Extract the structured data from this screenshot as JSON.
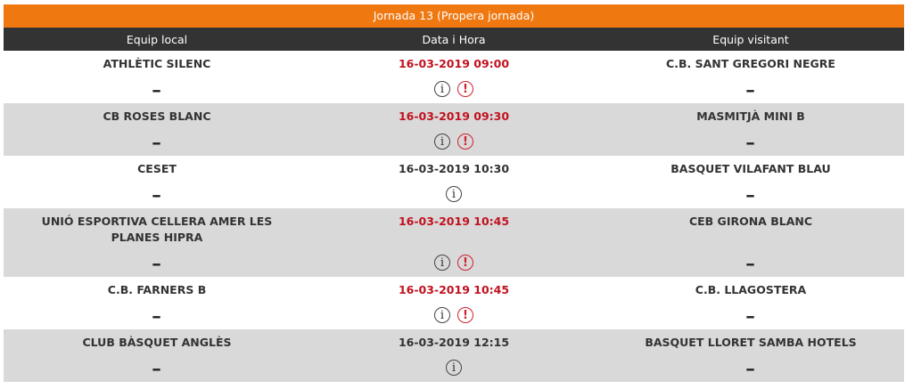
{
  "title": "Jornada 13 (Propera jornada)",
  "headers": {
    "local": "Equip local",
    "date": "Data i Hora",
    "visitor": "Equip visitant"
  },
  "colors": {
    "title_bg": "#ef7811",
    "header_bg": "#333333",
    "date_red": "#c1121f",
    "alt_row": "#d9d9d9"
  },
  "icons": {
    "info": "info-circle-icon",
    "warning": "exclamation-circle-icon"
  },
  "matches": [
    {
      "local": "ATHLÈTIC SILENC",
      "date": "16-03-2019 09:00",
      "visitor": "C.B. SANT GREGORI NEGRE",
      "local_score": "-",
      "visitor_score": "-",
      "date_red": true,
      "warning": true
    },
    {
      "local": "CB ROSES BLANC",
      "date": "16-03-2019 09:30",
      "visitor": "MASMITJÀ MINI B",
      "local_score": "-",
      "visitor_score": "-",
      "date_red": true,
      "warning": true
    },
    {
      "local": "CESET",
      "date": "16-03-2019 10:30",
      "visitor": "BASQUET VILAFANT BLAU",
      "local_score": "-",
      "visitor_score": "-",
      "date_red": false,
      "warning": false
    },
    {
      "local": "UNIÓ ESPORTIVA CELLERA AMER LES PLANES HIPRA",
      "date": "16-03-2019 10:45",
      "visitor": "CEB GIRONA BLANC",
      "local_score": "-",
      "visitor_score": "-",
      "date_red": true,
      "warning": true
    },
    {
      "local": "C.B. FARNERS B",
      "date": "16-03-2019 10:45",
      "visitor": "C.B. LLAGOSTERA",
      "local_score": "-",
      "visitor_score": "-",
      "date_red": true,
      "warning": true
    },
    {
      "local": "CLUB BÀSQUET ANGLÈS",
      "date": "16-03-2019 12:15",
      "visitor": "BASQUET LLORET SAMBA HOTELS",
      "local_score": "-",
      "visitor_score": "-",
      "date_red": false,
      "warning": false
    }
  ]
}
